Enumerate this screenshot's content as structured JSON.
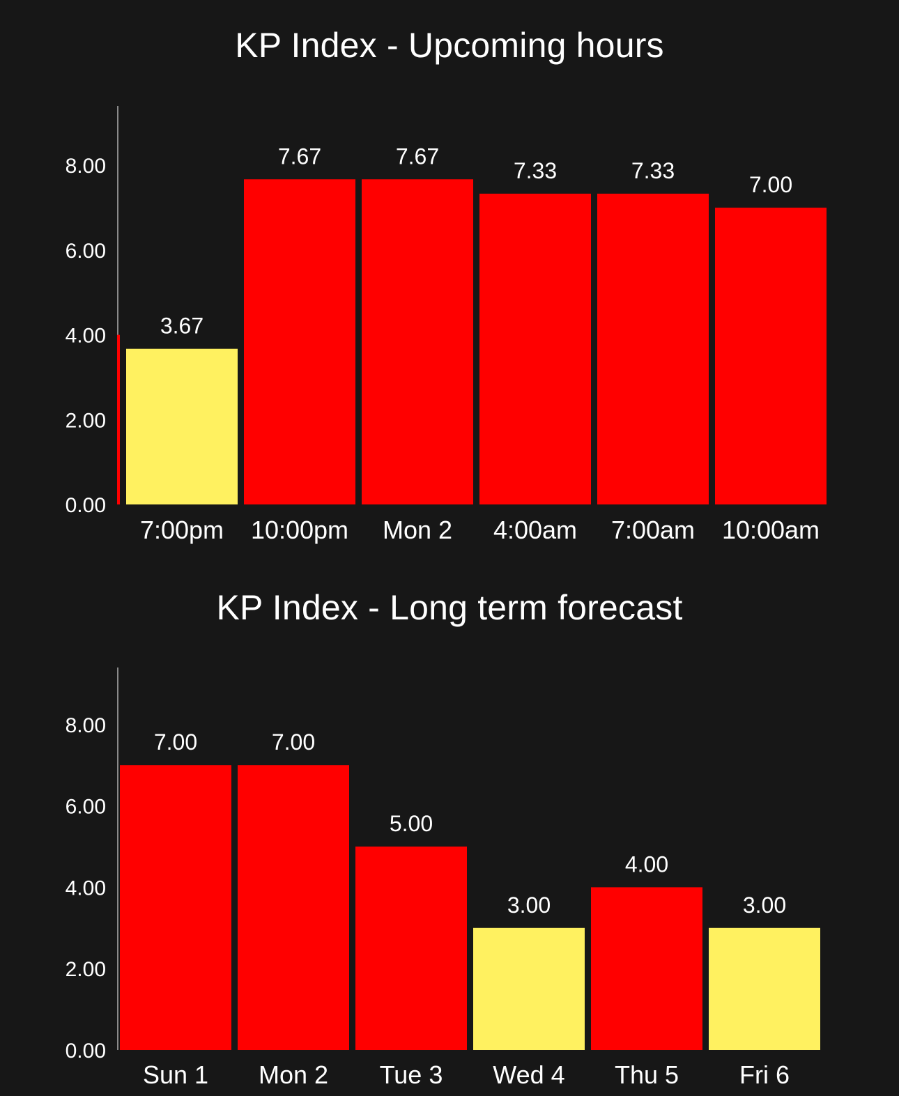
{
  "colors": {
    "background": "#171717",
    "high": "#ff0000",
    "moderate": "#fff160",
    "axis": "#8a8a8a",
    "text": "#ffffff"
  },
  "chart_data": [
    {
      "type": "bar",
      "title": "KP Index - Upcoming hours",
      "categories": [
        "7:00pm",
        "10:00pm",
        "Mon 2",
        "4:00am",
        "7:00am",
        "10:00am"
      ],
      "values": [
        3.67,
        7.67,
        7.67,
        7.33,
        7.33,
        7.0
      ],
      "value_labels": [
        "3.67",
        "7.67",
        "7.67",
        "7.33",
        "7.33",
        "7.00"
      ],
      "bar_colors": [
        "#fff160",
        "#ff0000",
        "#ff0000",
        "#ff0000",
        "#ff0000",
        "#ff0000"
      ],
      "yticks": [
        "0.00",
        "2.00",
        "4.00",
        "6.00",
        "8.00"
      ],
      "ytick_values": [
        0,
        2,
        4,
        6,
        8
      ],
      "ylim": [
        0,
        9.4
      ],
      "current_level": 4.0,
      "xlabel": "",
      "ylabel": "",
      "grid": false,
      "legend": "none"
    },
    {
      "type": "bar",
      "title": "KP Index - Long term forecast",
      "categories": [
        "Sun 1",
        "Mon 2",
        "Tue 3",
        "Wed 4",
        "Thu 5",
        "Fri 6"
      ],
      "values": [
        7.0,
        7.0,
        5.0,
        3.0,
        4.0,
        3.0
      ],
      "value_labels": [
        "7.00",
        "7.00",
        "5.00",
        "3.00",
        "4.00",
        "3.00"
      ],
      "bar_colors": [
        "#ff0000",
        "#ff0000",
        "#ff0000",
        "#fff160",
        "#ff0000",
        "#fff160"
      ],
      "yticks": [
        "0.00",
        "2.00",
        "4.00",
        "6.00",
        "8.00"
      ],
      "ytick_values": [
        0,
        2,
        4,
        6,
        8
      ],
      "ylim": [
        0,
        9.4
      ],
      "xlabel": "",
      "ylabel": "",
      "grid": false,
      "legend": "none"
    }
  ]
}
